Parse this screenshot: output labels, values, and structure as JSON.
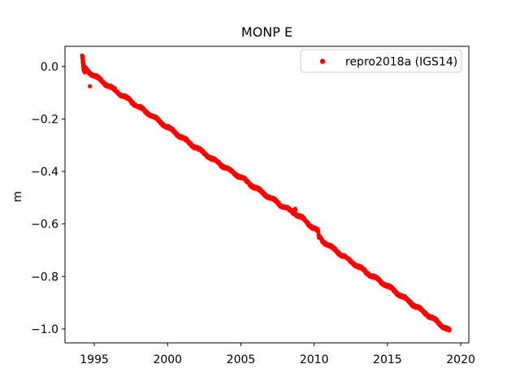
{
  "figure": {
    "background_color": "#ffffff"
  },
  "chart_data": {
    "type": "scatter",
    "title": "MONP E",
    "xlabel": "",
    "ylabel": "m",
    "grid": false,
    "xlim": [
      1993.0,
      2020.55
    ],
    "ylim": [
      -1.053,
      0.077
    ],
    "x_ticks": [
      {
        "value": 1995,
        "label": "1995"
      },
      {
        "value": 2000,
        "label": "2000"
      },
      {
        "value": 2005,
        "label": "2005"
      },
      {
        "value": 2010,
        "label": "2010"
      },
      {
        "value": 2015,
        "label": "2015"
      },
      {
        "value": 2020,
        "label": "2020"
      }
    ],
    "y_ticks": [
      {
        "value": 0.0,
        "label": "0.0"
      },
      {
        "value": -0.2,
        "label": "−0.2"
      },
      {
        "value": -0.4,
        "label": "−0.4"
      },
      {
        "value": -0.6,
        "label": "−0.6"
      },
      {
        "value": -0.8,
        "label": "−0.8"
      },
      {
        "value": -1.0,
        "label": "−1.0"
      }
    ],
    "legend": {
      "position": "upper right",
      "border_color": "#cccccc",
      "background_color": "#ffffff",
      "entries": [
        {
          "label": "repro2018a (IGS14)",
          "marker": "dot",
          "color": "#ff0000"
        }
      ]
    },
    "series": [
      {
        "name": "repro2018a (IGS14)",
        "color": "#ff0000",
        "marker": "point",
        "marker_radius_px": 2.6,
        "x_start": 1994.32,
        "x_end": 2019.25,
        "sample_step_years": 0.015,
        "noise_amplitude_m": 0.0045,
        "seasonal_amplitude_m": 0.004,
        "trend_anchors": [
          [
            1994.32,
            -0.005
          ],
          [
            1995.0,
            -0.035
          ],
          [
            1996.0,
            -0.075
          ],
          [
            1997.0,
            -0.113
          ],
          [
            1998.0,
            -0.152
          ],
          [
            1999.0,
            -0.191
          ],
          [
            2000.0,
            -0.231
          ],
          [
            2001.0,
            -0.271
          ],
          [
            2002.0,
            -0.311
          ],
          [
            2003.0,
            -0.35
          ],
          [
            2004.0,
            -0.387
          ],
          [
            2005.0,
            -0.422
          ],
          [
            2006.0,
            -0.462
          ],
          [
            2007.0,
            -0.5
          ],
          [
            2008.0,
            -0.537
          ],
          [
            2009.0,
            -0.57
          ],
          [
            2010.25,
            -0.628
          ],
          [
            2010.32,
            -0.652
          ],
          [
            2011.0,
            -0.682
          ],
          [
            2012.0,
            -0.722
          ],
          [
            2013.0,
            -0.762
          ],
          [
            2014.0,
            -0.8
          ],
          [
            2015.0,
            -0.836
          ],
          [
            2016.0,
            -0.876
          ],
          [
            2017.0,
            -0.916
          ],
          [
            2018.0,
            -0.956
          ],
          [
            2019.0,
            -0.998
          ],
          [
            2019.25,
            -1.008
          ]
        ],
        "start_cluster": [
          [
            1994.17,
            0.042
          ],
          [
            1994.18,
            0.035
          ],
          [
            1994.2,
            0.027
          ],
          [
            1994.21,
            0.015
          ],
          [
            1994.22,
            0.03
          ],
          [
            1994.22,
            0.038
          ],
          [
            1994.23,
            0.005
          ],
          [
            1994.24,
            0.02
          ],
          [
            1994.25,
            -0.003
          ],
          [
            1994.26,
            0.01
          ],
          [
            1994.27,
            -0.012
          ],
          [
            1994.28,
            0.0
          ],
          [
            1994.3,
            -0.018
          ],
          [
            1994.32,
            -0.008
          ],
          [
            1994.34,
            -0.022
          ]
        ],
        "outliers": [
          [
            1994.7,
            -0.075
          ],
          [
            2008.67,
            -0.545
          ],
          [
            2008.7,
            -0.542
          ],
          [
            2008.73,
            -0.547
          ]
        ]
      }
    ]
  }
}
